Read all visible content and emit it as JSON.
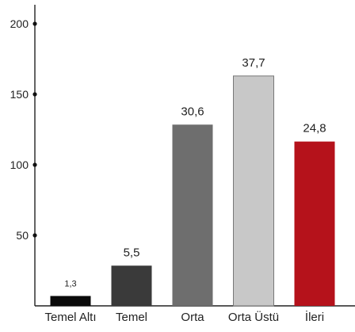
{
  "chart_data": {
    "type": "bar",
    "title": "",
    "xlabel": "",
    "ylabel": "",
    "categories": [
      "Temel Altı",
      "Temel",
      "Orta",
      "Orta Üstü",
      "İleri"
    ],
    "values": [
      7,
      28.5,
      128.5,
      163,
      116.5
    ],
    "value_labels": [
      "1,3",
      "5,5",
      "30,6",
      "37,7",
      "24,8"
    ],
    "colors": [
      "#0a0a0a",
      "#3a3a3a",
      "#6e6e6e",
      "#c8c8c8",
      "#b5121b"
    ],
    "ylim": [
      0,
      220
    ],
    "yticks": [
      50,
      100,
      150,
      200
    ],
    "ytick_labels": [
      "50",
      "100",
      "150",
      "200"
    ],
    "grid": false,
    "legend": "none"
  }
}
